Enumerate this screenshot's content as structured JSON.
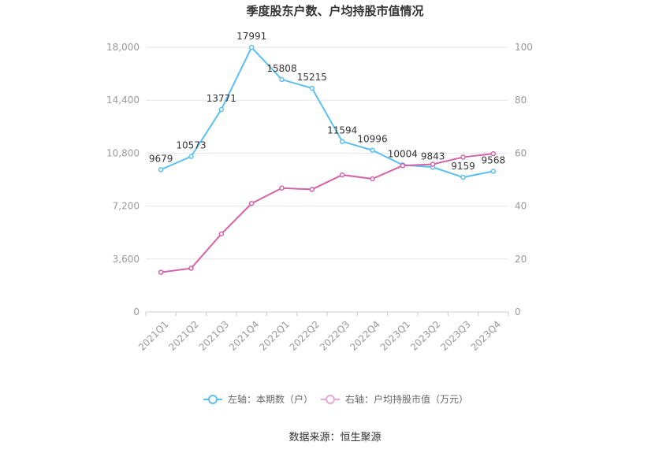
{
  "chart_data": {
    "type": "line",
    "title": "季度股东户数、户均持股市值情况",
    "categories": [
      "2021Q1",
      "2021Q2",
      "2021Q3",
      "2021Q4",
      "2022Q1",
      "2022Q2",
      "2022Q3",
      "2022Q4",
      "2023Q1",
      "2023Q2",
      "2023Q3",
      "2023Q4"
    ],
    "left_axis": {
      "ylim": [
        0,
        18000
      ],
      "ticks": [
        "0",
        "3,600",
        "7,200",
        "10,800",
        "14,400",
        "18,000"
      ],
      "tick_values": [
        0,
        3600,
        7200,
        10800,
        14400,
        18000
      ]
    },
    "right_axis": {
      "ylim": [
        0,
        100
      ],
      "ticks": [
        "0",
        "20",
        "40",
        "60",
        "80",
        "100"
      ],
      "tick_values": [
        0,
        20,
        40,
        60,
        80,
        100
      ]
    },
    "series": [
      {
        "name": "左轴：本期数（户）",
        "axis": "left",
        "color": "#5bc0f0",
        "values": [
          9679,
          10573,
          13771,
          17991,
          15808,
          15215,
          11594,
          10996,
          10004,
          9843,
          9159,
          9568
        ],
        "labels": [
          "9679",
          "10573",
          "13771",
          "17991",
          "15808",
          "15215",
          "11594",
          "10996",
          "10004",
          "9843",
          "9159",
          "9568"
        ]
      },
      {
        "name": "右轴：户均持股市值（万元）",
        "axis": "right",
        "color": "#d462a8",
        "values": [
          15.0,
          16.5,
          29.5,
          41.0,
          46.8,
          46.3,
          51.8,
          50.3,
          55.3,
          55.8,
          58.5,
          59.8
        ]
      }
    ],
    "grid": true,
    "legend_position": "bottom"
  },
  "source": "数据来源：恒生聚源"
}
